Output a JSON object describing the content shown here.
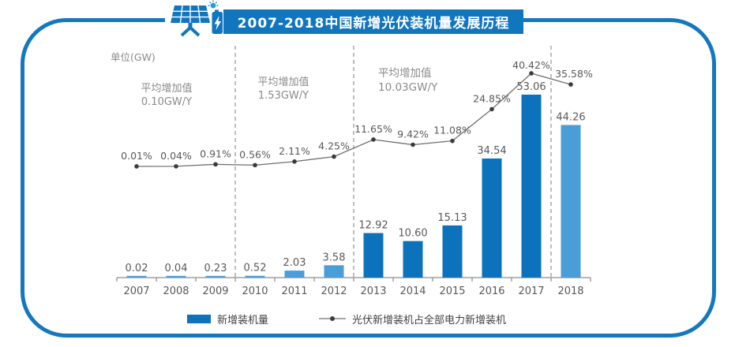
{
  "header": {
    "title": "2007-2018中国新增光伏装机量发展历程"
  },
  "colors": {
    "banner_blue": "#1176BE",
    "border_blue": "#1478BE",
    "bar_dark": "#0D72BC",
    "bar_light": "#4A9DD6",
    "line_gray": "#6f6f6f",
    "dot_dark": "#3b3b3b",
    "label_gray": "#595959",
    "annotation_gray": "#8a8a8a",
    "divider_gray": "#9a9a9a",
    "sun_blue": "#1E9BE2"
  },
  "legend": {
    "bar_label": "新增装机量",
    "line_label": "光伏新增装机占全部电力新增装机"
  },
  "chart_data": {
    "type": "combo-bar-line",
    "title": "2007-2018中国新增光伏装机量发展历程",
    "unit_label": "单位(GW)",
    "categories": [
      "2007",
      "2008",
      "2009",
      "2010",
      "2011",
      "2012",
      "2013",
      "2014",
      "2015",
      "2016",
      "2017",
      "2018"
    ],
    "series": [
      {
        "name": "新增装机量",
        "type": "bar",
        "unit": "GW",
        "values": [
          0.02,
          0.04,
          0.23,
          0.52,
          2.03,
          3.58,
          12.92,
          10.6,
          15.13,
          34.54,
          53.06,
          44.26
        ],
        "labels": [
          "0.02",
          "0.04",
          "0.23",
          "0.52",
          "2.03",
          "3.58",
          "12.92",
          "10.60",
          "15.13",
          "34.54",
          "53.06",
          "44.26"
        ],
        "bar_style": [
          "light",
          "light",
          "light",
          "light",
          "light",
          "light",
          "dark",
          "dark",
          "dark",
          "dark",
          "dark",
          "light"
        ]
      },
      {
        "name": "光伏新增装机占全部电力新增装机",
        "type": "line",
        "unit": "%",
        "values": [
          0.01,
          0.04,
          0.91,
          0.56,
          2.11,
          4.25,
          11.65,
          9.42,
          11.08,
          24.85,
          40.42,
          35.58
        ],
        "labels": [
          "0.01%",
          "0.04%",
          "0.91%",
          "0.56%",
          "2.11%",
          "4.25%",
          "11.65%",
          "9.42%",
          "11.08%",
          "24.85%",
          "40.42%",
          "35.58%"
        ]
      }
    ],
    "period_dividers_after": [
      "2009",
      "2012",
      "2017"
    ],
    "period_annotations": [
      {
        "line1": "平均增加值",
        "line2": "0.10GW/Y"
      },
      {
        "line1": "平均增加值",
        "line2": "1.53GW/Y"
      },
      {
        "line1": "平均增加值",
        "line2": "10.03GW/Y"
      }
    ],
    "gridlines": false,
    "legend_position": "bottom"
  }
}
